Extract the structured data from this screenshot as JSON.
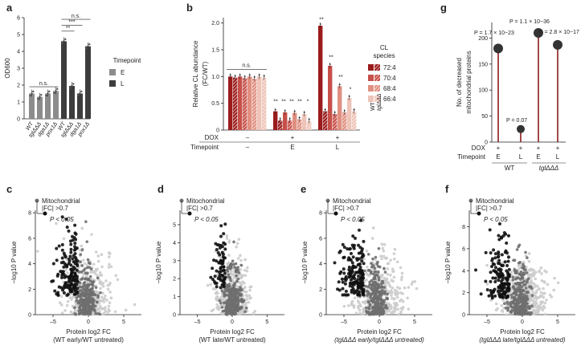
{
  "panels": {
    "a": "a",
    "b": "b",
    "g": "g",
    "c": "c",
    "d": "d",
    "e": "e",
    "f": "f"
  },
  "colors": {
    "E": "#8c8c8c",
    "L": "#3d3d3d",
    "mito": "#6e6e6e",
    "sig": "#111111",
    "ns": "#cccccc",
    "red": "#8b1a1a"
  },
  "chart_data": [
    {
      "panel": "a",
      "type": "bar",
      "ylabel": "OD600",
      "ylim": [
        0,
        6
      ],
      "yticks": [
        0,
        1,
        2,
        3,
        4,
        5,
        6
      ],
      "categories": [
        "WT",
        "tglΔΔΔ",
        "dga1Δ",
        "pox1Δ",
        "WT",
        "tglΔΔΔ",
        "dga1Δ",
        "pox1Δ"
      ],
      "values": [
        1.5,
        1.3,
        1.5,
        1.65,
        4.6,
        1.95,
        1.5,
        4.3
      ],
      "timepoint": [
        "E",
        "E",
        "E",
        "E",
        "L",
        "L",
        "L",
        "L"
      ],
      "legend": {
        "title": "Timepoint",
        "items": [
          "E",
          "L"
        ]
      },
      "annotations": [
        "n.s.",
        "**",
        "***",
        "n.s."
      ]
    },
    {
      "panel": "b",
      "type": "bar",
      "ylabel": "Relative CL abundance\n(FC/WT)",
      "ylim": [
        0,
        2
      ],
      "yticks": [
        "0",
        "0.5",
        "1.0",
        "1.5",
        "2.0"
      ],
      "legend": {
        "title": "CL\nspecies",
        "items": [
          "72:4",
          "70:4",
          "68:4",
          "66:4"
        ]
      },
      "strain_labels": [
        "WT",
        "tglΔΔΔ"
      ],
      "xrow_labels": {
        "dox": "DOX",
        "timepoint": "Timepoint"
      },
      "groups": [
        {
          "dox": "–",
          "timepoint": "–",
          "values": [
            1.0,
            0.98,
            1.0,
            0.97,
            1.0,
            0.96,
            1.0,
            0.98
          ]
        },
        {
          "dox": "+",
          "timepoint": "E",
          "values": [
            0.35,
            0.18,
            0.33,
            0.18,
            0.32,
            0.2,
            0.3,
            0.17
          ]
        },
        {
          "dox": "+",
          "timepoint": "L",
          "values": [
            1.95,
            0.35,
            1.2,
            0.3,
            0.82,
            0.33,
            0.6,
            0.35
          ]
        }
      ],
      "annotations": [
        "n.s.",
        "**",
        "**",
        "**",
        "**",
        "*",
        "**",
        "**",
        "**",
        "*"
      ]
    },
    {
      "panel": "g",
      "type": "scatter",
      "ylabel": "No. of decreased\nmitochondrial proteins",
      "ylim": [
        0,
        200
      ],
      "yticks": [
        0,
        50,
        100,
        150,
        200
      ],
      "xrow_labels": {
        "dox": "DOX",
        "timepoint": "Timepoint"
      },
      "points": [
        {
          "group": "WT",
          "dox": "+",
          "timepoint": "E",
          "value": 180,
          "label": "P = 1.7 × 10−23"
        },
        {
          "group": "WT",
          "dox": "+",
          "timepoint": "L",
          "value": 25,
          "label": "P = 0.07"
        },
        {
          "group": "tglΔΔΔ",
          "dox": "+",
          "timepoint": "E",
          "value": 210,
          "label": "P = 1.1 × 10−36"
        },
        {
          "group": "tglΔΔΔ",
          "dox": "+",
          "timepoint": "L",
          "value": 187,
          "label": "P = 2.8 × 10−17"
        }
      ]
    },
    {
      "panel": "c",
      "type": "scatter",
      "xlabel": "Protein log2 FC\n(WT early/WT untreated)",
      "ylabel": "−log10 P value",
      "xlim": [
        -7.5,
        7.5
      ],
      "ylim": [
        0,
        8.2
      ],
      "xticks": [
        "–5",
        "0",
        "5"
      ],
      "yticks": [
        0,
        2,
        4,
        6,
        8
      ],
      "legend": [
        "Mitochondrial",
        "|FC| >0.7",
        "P < 0.05"
      ]
    },
    {
      "panel": "d",
      "type": "scatter",
      "xlabel": "Protein log2 FC\n(WT late/WT untreated)",
      "ylabel": "−log10 P value",
      "xlim": [
        -7.5,
        7.5
      ],
      "ylim": [
        0,
        5.8
      ],
      "xticks": [
        "–5",
        "0",
        "5"
      ],
      "yticks": [
        0,
        1,
        2,
        3,
        4,
        5
      ],
      "legend": [
        "Mitochondrial",
        "|FC| >0.7",
        "P < 0.05"
      ]
    },
    {
      "panel": "e",
      "type": "scatter",
      "xlabel": "Protein log2 FC\n(tglΔΔΔ early/tglΔΔΔ untreated)",
      "ylabel": "−log10 P value",
      "xlim": [
        -7.5,
        7.5
      ],
      "ylim": [
        0,
        8.2
      ],
      "xticks": [
        "–5",
        "0",
        "5"
      ],
      "yticks": [
        0,
        2,
        4,
        6,
        8
      ],
      "legend": [
        "Mitochondrial",
        "|FC| >0.7",
        "P < 0.05"
      ]
    },
    {
      "panel": "f",
      "type": "scatter",
      "xlabel": "Protein log2 FC\n(tglΔΔΔ late/tglΔΔΔ untreated)",
      "ylabel": "−log10 P value",
      "xlim": [
        -7.5,
        7.5
      ],
      "ylim": [
        0,
        9.5
      ],
      "xticks": [
        "–5",
        "0",
        "5"
      ],
      "yticks": [
        0,
        2,
        4,
        6,
        8
      ],
      "legend": [
        "Mitochondrial",
        "|FC| >0.7",
        "P < 0.05"
      ]
    }
  ]
}
